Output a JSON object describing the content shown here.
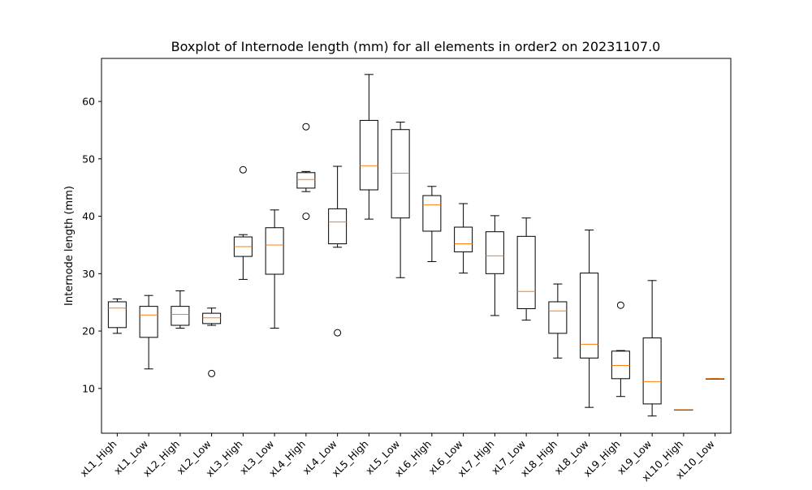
{
  "chart_data": {
    "type": "boxplot",
    "title": "Boxplot of Internode length (mm) for all elements in order2 on 20231107.0",
    "xlabel": "",
    "ylabel": "Internode length (mm)",
    "ylim": [
      2.2,
      67.5
    ],
    "yticks": [
      10,
      20,
      30,
      40,
      50,
      60
    ],
    "grid": false,
    "legend": "none",
    "categories": [
      "xL1_High",
      "xL1_Low",
      "xL2_High",
      "xL2_Low",
      "xL3_High",
      "xL3_Low",
      "xL4_High",
      "xL4_Low",
      "xL5_High",
      "xL5_Low",
      "xL6_High",
      "xL6_Low",
      "xL7_High",
      "xL7_Low",
      "xL8_High",
      "xL8_Low",
      "xL9_High",
      "xL9_Low",
      "xL10_High",
      "xL10_Low"
    ],
    "boxes": [
      {
        "label": "xL1_High",
        "whislo": 19.6,
        "q1": 20.6,
        "med": 24.0,
        "q3": 25.1,
        "whishi": 25.6,
        "fliers": []
      },
      {
        "label": "xL1_Low",
        "whislo": 13.4,
        "q1": 18.9,
        "med": 22.8,
        "q3": 24.3,
        "whishi": 26.2,
        "fliers": []
      },
      {
        "label": "xL2_High",
        "whislo": 20.5,
        "q1": 21.0,
        "med": 22.9,
        "q3": 24.3,
        "whishi": 27.0,
        "fliers": []
      },
      {
        "label": "xL2_Low",
        "whislo": 21.0,
        "q1": 21.3,
        "med": 22.3,
        "q3": 23.1,
        "whishi": 24.0,
        "fliers": [
          12.6
        ]
      },
      {
        "label": "xL3_High",
        "whislo": 29.0,
        "q1": 33.0,
        "med": 34.7,
        "q3": 36.4,
        "whishi": 36.8,
        "fliers": [
          48.1
        ]
      },
      {
        "label": "xL3_Low",
        "whislo": 20.5,
        "q1": 29.9,
        "med": 35.0,
        "q3": 38.0,
        "whishi": 41.1,
        "fliers": []
      },
      {
        "label": "xL4_High",
        "whislo": 44.3,
        "q1": 44.9,
        "med": 46.4,
        "q3": 47.6,
        "whishi": 47.8,
        "fliers": [
          55.6,
          40.0
        ]
      },
      {
        "label": "xL4_Low",
        "whislo": 34.6,
        "q1": 35.2,
        "med": 39.0,
        "q3": 41.3,
        "whishi": 48.7,
        "fliers": [
          19.7
        ]
      },
      {
        "label": "xL5_High",
        "whislo": 39.5,
        "q1": 44.6,
        "med": 48.8,
        "q3": 56.7,
        "whishi": 64.7,
        "fliers": []
      },
      {
        "label": "xL5_Low",
        "whislo": 29.3,
        "q1": 39.7,
        "med": 47.5,
        "q3": 55.1,
        "whishi": 56.4,
        "fliers": []
      },
      {
        "label": "xL6_High",
        "whislo": 32.1,
        "q1": 37.4,
        "med": 42.0,
        "q3": 43.6,
        "whishi": 45.2,
        "fliers": []
      },
      {
        "label": "xL6_Low",
        "whislo": 30.1,
        "q1": 33.8,
        "med": 35.2,
        "q3": 38.1,
        "whishi": 42.2,
        "fliers": []
      },
      {
        "label": "xL7_High",
        "whislo": 22.7,
        "q1": 30.0,
        "med": 33.1,
        "q3": 37.3,
        "whishi": 40.1,
        "fliers": []
      },
      {
        "label": "xL7_Low",
        "whislo": 21.9,
        "q1": 23.9,
        "med": 26.9,
        "q3": 36.5,
        "whishi": 39.7,
        "fliers": []
      },
      {
        "label": "xL8_High",
        "whislo": 15.3,
        "q1": 19.6,
        "med": 23.5,
        "q3": 25.1,
        "whishi": 28.2,
        "fliers": []
      },
      {
        "label": "xL8_Low",
        "whislo": 6.7,
        "q1": 15.3,
        "med": 17.7,
        "q3": 30.1,
        "whishi": 37.6,
        "fliers": []
      },
      {
        "label": "xL9_High",
        "whislo": 8.6,
        "q1": 11.7,
        "med": 14.0,
        "q3": 16.5,
        "whishi": 16.6,
        "fliers": [
          24.5
        ]
      },
      {
        "label": "xL9_Low",
        "whislo": 5.2,
        "q1": 7.3,
        "med": 11.2,
        "q3": 18.8,
        "whishi": 28.8,
        "fliers": []
      },
      {
        "label": "xL10_High",
        "whislo": 6.3,
        "q1": 6.3,
        "med": 6.3,
        "q3": 6.3,
        "whishi": 6.3,
        "fliers": []
      },
      {
        "label": "xL10_Low",
        "whislo": 11.7,
        "q1": 11.7,
        "med": 11.7,
        "q3": 11.7,
        "whishi": 11.7,
        "fliers": []
      }
    ],
    "colors": {
      "box": "#000000",
      "median": "#ff7f0e",
      "flier": "#000000",
      "background": "#ffffff"
    }
  }
}
